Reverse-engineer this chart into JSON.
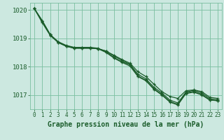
{
  "title": "Graphe pression niveau de la mer (hPa)",
  "background_color": "#cce8e0",
  "grid_color": "#7abfa0",
  "line_color": "#1a5c2a",
  "xlim": [
    -0.5,
    23.5
  ],
  "ylim": [
    1016.5,
    1020.25
  ],
  "yticks": [
    1017,
    1018,
    1019,
    1020
  ],
  "xticks": [
    0,
    1,
    2,
    3,
    4,
    5,
    6,
    7,
    8,
    9,
    10,
    11,
    12,
    13,
    14,
    15,
    16,
    17,
    18,
    19,
    20,
    21,
    22,
    23
  ],
  "series": [
    [
      1020.05,
      1019.55,
      1019.1,
      1018.85,
      1018.72,
      1018.65,
      1018.65,
      1018.65,
      1018.63,
      1018.55,
      1018.4,
      1018.25,
      1018.12,
      1017.82,
      1017.65,
      1017.38,
      1017.12,
      1016.95,
      1016.88,
      1017.15,
      1017.18,
      1017.12,
      1016.92,
      1016.88
    ],
    [
      1020.05,
      1019.6,
      1019.12,
      1018.87,
      1018.73,
      1018.67,
      1018.67,
      1018.67,
      1018.63,
      1018.55,
      1018.37,
      1018.22,
      1018.08,
      1017.73,
      1017.57,
      1017.27,
      1017.07,
      1016.82,
      1016.72,
      1017.1,
      1017.17,
      1017.07,
      1016.87,
      1016.83
    ],
    [
      1020.05,
      1019.62,
      1019.13,
      1018.88,
      1018.75,
      1018.68,
      1018.68,
      1018.68,
      1018.65,
      1018.52,
      1018.32,
      1018.17,
      1018.07,
      1017.67,
      1017.52,
      1017.22,
      1017.02,
      1016.77,
      1016.67,
      1017.07,
      1017.13,
      1017.02,
      1016.83,
      1016.8
    ],
    [
      1020.05,
      1019.62,
      1019.13,
      1018.85,
      1018.72,
      1018.65,
      1018.65,
      1018.65,
      1018.63,
      1018.5,
      1018.3,
      1018.15,
      1018.02,
      1017.65,
      1017.5,
      1017.2,
      1017.0,
      1016.75,
      1016.65,
      1017.05,
      1017.1,
      1017.0,
      1016.82,
      1016.8
    ]
  ]
}
